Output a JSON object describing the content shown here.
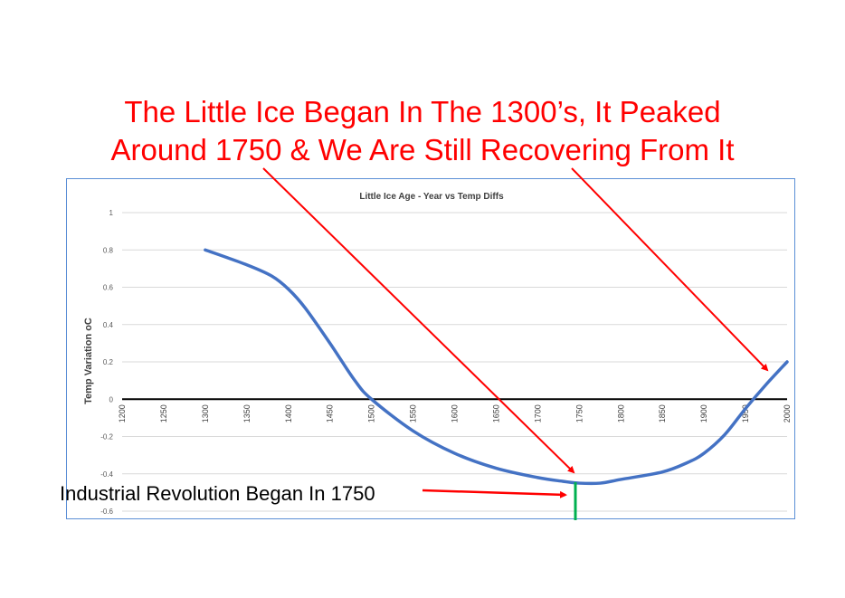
{
  "slide": {
    "headline_line1": "The Little Ice Began In The 1300’s, It Peaked",
    "headline_line2": "Around 1750 & We Are Still Recovering From It",
    "callout": "Industrial Revolution Began In 1750",
    "headline_color": "#ff0000",
    "arrow_color": "#ff0000",
    "marker_color": "#00b050"
  },
  "chart_data": {
    "type": "line",
    "title": "Little Ice Age - Year vs Temp Diffs",
    "xlabel": "",
    "ylabel": "Temp Variation oC",
    "xlim": [
      1200,
      2000
    ],
    "ylim": [
      -0.6,
      1
    ],
    "x_ticks": [
      "1200",
      "1250",
      "1300",
      "1350",
      "1400",
      "1450",
      "1500",
      "1550",
      "1600",
      "1650",
      "1700",
      "1750",
      "1800",
      "1850",
      "1900",
      "1950",
      "2000"
    ],
    "y_ticks": [
      "1",
      "0.8",
      "0.6",
      "0.4",
      "0.2",
      "0",
      "-0.2",
      "-0.4",
      "-0.6"
    ],
    "grid": true,
    "legend": "none",
    "series_color": "#4472c4",
    "series": [
      {
        "x": [
          1300,
          1350,
          1380,
          1400,
          1420,
          1450,
          1480,
          1500,
          1550,
          1600,
          1650,
          1700,
          1730,
          1750,
          1775,
          1800,
          1850,
          1880,
          1900,
          1925,
          1950,
          1975,
          2000
        ],
        "y": [
          0.8,
          0.72,
          0.66,
          0.59,
          0.49,
          0.3,
          0.1,
          0.0,
          -0.17,
          -0.29,
          -0.37,
          -0.42,
          -0.44,
          -0.45,
          -0.45,
          -0.43,
          -0.39,
          -0.34,
          -0.29,
          -0.19,
          -0.05,
          0.08,
          0.2
        ]
      }
    ]
  }
}
